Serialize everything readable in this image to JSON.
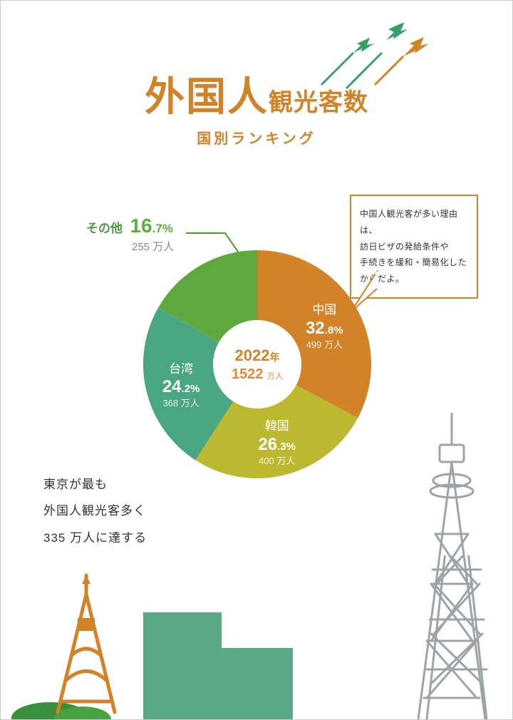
{
  "title": {
    "main": "外国人",
    "sub": "観光客数",
    "sub2": "国別ランキング"
  },
  "colors": {
    "accent": "#d28227",
    "green_plane": "#399f6a",
    "orange_plane": "#d28227",
    "leader": "#4f9a30",
    "tower_gray": "#9da3a6",
    "building_green": "#5aa884",
    "grass": "#3a8f3c",
    "tokyo_tower": "#d28227"
  },
  "donut": {
    "type": "pie",
    "center": {
      "year": "2022",
      "year_unit": "年",
      "total": "1522",
      "total_unit": "万人"
    },
    "slices": [
      {
        "key": "china",
        "name": "中国",
        "pct_int": "32",
        "pct_dec": ".8%",
        "count": "499 万人",
        "color": "#d28227",
        "start": 0,
        "end": 32.8
      },
      {
        "key": "korea",
        "name": "韓国",
        "pct_int": "26",
        "pct_dec": ".3%",
        "count": "400 万人",
        "color": "#bcb931",
        "start": 32.8,
        "end": 59.1
      },
      {
        "key": "taiwan",
        "name": "台湾",
        "pct_int": "24",
        "pct_dec": ".2%",
        "count": "368 万人",
        "color": "#4aa680",
        "start": 59.1,
        "end": 83.3
      },
      {
        "key": "other",
        "name": "その他",
        "pct_int": "16",
        "pct_dec": ".7%",
        "count": "255 万人",
        "color": "#5fa83d",
        "start": 83.3,
        "end": 100,
        "external": true
      }
    ],
    "outer_r": 160,
    "inner_r": 62,
    "label_r": 110
  },
  "speech": {
    "line1": "中国人観光客が多い理由は、",
    "line2": "訪日ビザの発給条件や",
    "line3": "手続きを緩和・簡易化した",
    "line4": "からだよ。"
  },
  "sidenote": {
    "line1": "東京が最も",
    "line2": "外国人観光客多く",
    "line3": "335 万人に達する"
  }
}
